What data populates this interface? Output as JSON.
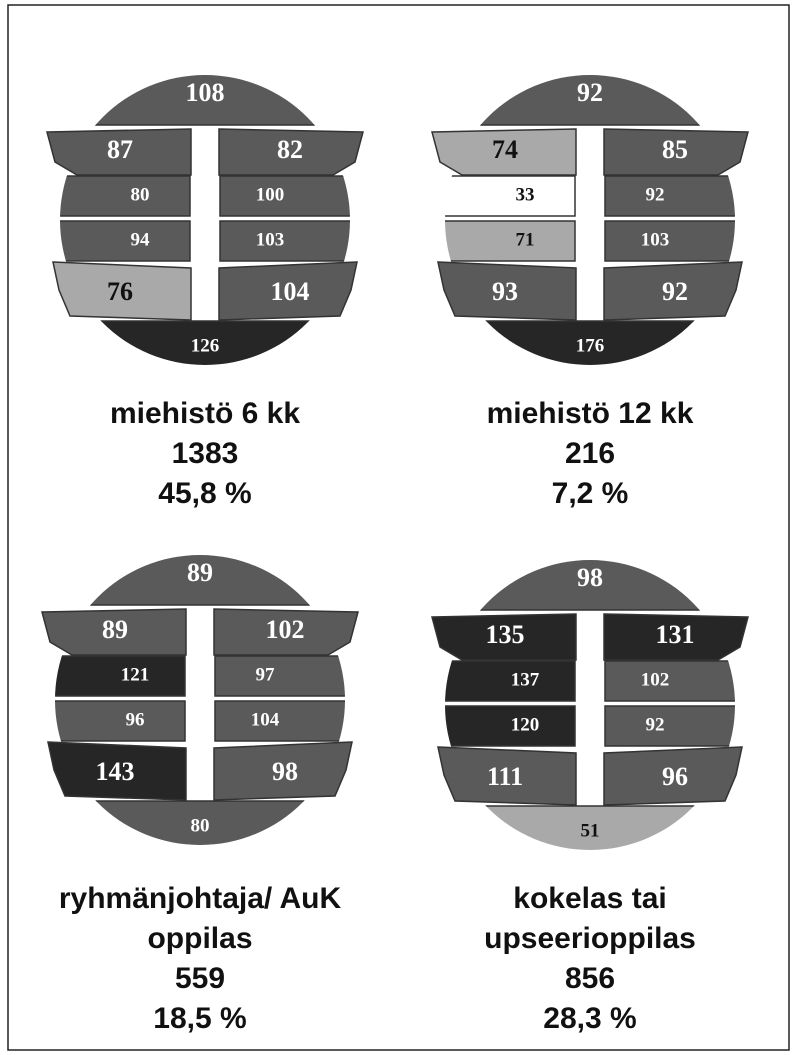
{
  "diagrams": [
    {
      "regions": [
        {
          "value": 108,
          "color": "#5a5a5a"
        },
        {
          "value": 87,
          "color": "#5a5a5a"
        },
        {
          "value": 82,
          "color": "#5a5a5a"
        },
        {
          "value": 80,
          "color": "#5a5a5a"
        },
        {
          "value": 100,
          "color": "#5a5a5a"
        },
        {
          "value": 94,
          "color": "#5a5a5a"
        },
        {
          "value": 103,
          "color": "#5a5a5a"
        },
        {
          "value": 76,
          "color": "#a9a9a9"
        },
        {
          "value": 104,
          "color": "#5a5a5a"
        },
        {
          "value": 126,
          "color": "#262626"
        }
      ],
      "caption": [
        "miehistö 6 kk",
        "1383",
        "45,8 %"
      ]
    },
    {
      "regions": [
        {
          "value": 92,
          "color": "#5a5a5a"
        },
        {
          "value": 74,
          "color": "#a9a9a9"
        },
        {
          "value": 85,
          "color": "#5a5a5a"
        },
        {
          "value": 33,
          "color": "#ffffff"
        },
        {
          "value": 92,
          "color": "#5a5a5a"
        },
        {
          "value": 71,
          "color": "#a9a9a9"
        },
        {
          "value": 103,
          "color": "#5a5a5a"
        },
        {
          "value": 93,
          "color": "#5a5a5a"
        },
        {
          "value": 92,
          "color": "#5a5a5a"
        },
        {
          "value": 176,
          "color": "#262626"
        }
      ],
      "caption": [
        "miehistö 12 kk",
        "216",
        "7,2 %"
      ]
    },
    {
      "regions": [
        {
          "value": 89,
          "color": "#5a5a5a"
        },
        {
          "value": 89,
          "color": "#5a5a5a"
        },
        {
          "value": 102,
          "color": "#5a5a5a"
        },
        {
          "value": 121,
          "color": "#262626"
        },
        {
          "value": 97,
          "color": "#5a5a5a"
        },
        {
          "value": 96,
          "color": "#5a5a5a"
        },
        {
          "value": 104,
          "color": "#5a5a5a"
        },
        {
          "value": 143,
          "color": "#262626"
        },
        {
          "value": 98,
          "color": "#5a5a5a"
        },
        {
          "value": 80,
          "color": "#5a5a5a"
        }
      ],
      "caption": [
        "ryhmänjohtaja/ AuK",
        "oppilas",
        "559",
        "18,5 %"
      ]
    },
    {
      "regions": [
        {
          "value": 98,
          "color": "#5a5a5a"
        },
        {
          "value": 135,
          "color": "#262626"
        },
        {
          "value": 131,
          "color": "#262626"
        },
        {
          "value": 137,
          "color": "#262626"
        },
        {
          "value": 102,
          "color": "#5a5a5a"
        },
        {
          "value": 120,
          "color": "#262626"
        },
        {
          "value": 92,
          "color": "#5a5a5a"
        },
        {
          "value": 111,
          "color": "#5a5a5a"
        },
        {
          "value": 96,
          "color": "#5a5a5a"
        },
        {
          "value": 51,
          "color": "#a9a9a9"
        }
      ],
      "caption": [
        "kokelas tai",
        "upseerioppilas",
        "856",
        "28,3 %"
      ]
    }
  ]
}
